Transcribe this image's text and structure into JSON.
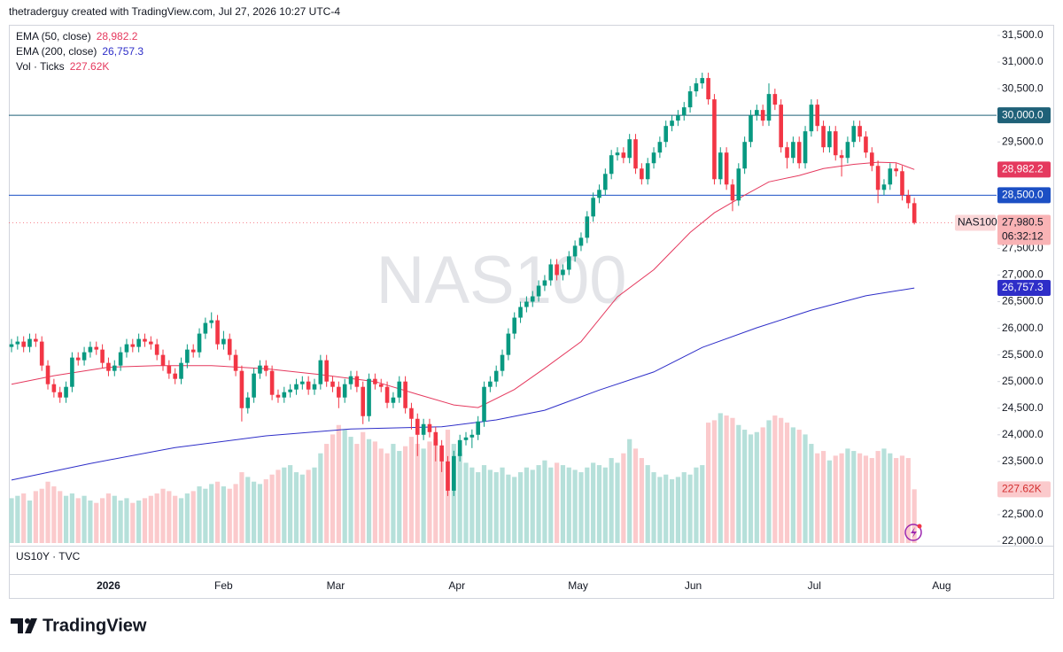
{
  "header": "thetraderguy created with TradingView.com, Jul 27, 2026 10:27 UTC-4",
  "footer_brand": "TradingView",
  "chart_data": {
    "type": "candlestick",
    "watermark": "NAS100",
    "symbol": "NAS100",
    "lower_pane": "US10Y · TVC",
    "up_color": "#089981",
    "down_color": "#f23645",
    "open": [
      25650,
      25700,
      25750,
      25650,
      25800,
      25750,
      25300,
      24950,
      24800,
      24700,
      24900,
      25450,
      25400,
      25550,
      25650,
      25600,
      25350,
      25200,
      25300,
      25550,
      25700,
      25650,
      25800,
      25750,
      25700,
      25500,
      25300,
      25150,
      25050,
      25350,
      25600,
      25550,
      25900,
      26100,
      26150,
      25700,
      25800,
      25500,
      25200,
      24500,
      24700,
      25150,
      25300,
      25200,
      24750,
      24700,
      24800,
      24850,
      24950,
      25000,
      24850,
      24950,
      25400,
      25000,
      24900,
      24700,
      24950,
      25100,
      24900,
      24350,
      25050,
      24950,
      24900,
      24600,
      24700,
      25000,
      24500,
      24300,
      24000,
      24200,
      24050,
      23800,
      23500,
      22950,
      23600,
      23900,
      23950,
      24000,
      24250,
      24900,
      25000,
      25200,
      25500,
      25900,
      26200,
      26400,
      26500,
      26600,
      26800,
      26900,
      27200,
      27000,
      27100,
      27350,
      27550,
      27700,
      28100,
      28450,
      28600,
      28900,
      29250,
      29300,
      29200,
      29550,
      29000,
      28800,
      29100,
      29300,
      29500,
      29800,
      29900,
      30000,
      30150,
      30450,
      30600,
      30700,
      30300,
      28800,
      29300,
      28700,
      28400,
      29000,
      29500,
      30000,
      30100,
      29900,
      30400,
      30200,
      29400,
      29200,
      29500,
      29100,
      29700,
      30200,
      29800,
      29400,
      29700,
      29250,
      29200,
      29500,
      29800,
      29600,
      29300,
      29050,
      28600,
      28700,
      29000,
      28950,
      28500,
      28350
    ],
    "high": [
      25800,
      25850,
      25850,
      25900,
      25900,
      25850,
      25400,
      25050,
      24900,
      25000,
      25550,
      25550,
      25650,
      25750,
      25750,
      25700,
      25450,
      25400,
      25650,
      25800,
      25800,
      25900,
      25900,
      25850,
      25800,
      25600,
      25400,
      25250,
      25450,
      25700,
      25700,
      26000,
      26200,
      26300,
      26250,
      25950,
      25900,
      25600,
      25300,
      24800,
      25250,
      25400,
      25400,
      25300,
      24850,
      24900,
      24950,
      25050,
      25100,
      25100,
      25050,
      25500,
      25500,
      25100,
      25000,
      25050,
      25200,
      25200,
      25000,
      25150,
      25150,
      25050,
      25000,
      24800,
      25100,
      25100,
      24600,
      24400,
      24300,
      24300,
      24150,
      23900,
      23600,
      23700,
      24000,
      24050,
      24100,
      24350,
      25000,
      25100,
      25300,
      25600,
      26000,
      26300,
      26500,
      26600,
      26700,
      26900,
      27000,
      27300,
      27300,
      27200,
      27450,
      27650,
      27800,
      28200,
      28550,
      28700,
      29000,
      29350,
      29400,
      29400,
      29650,
      29650,
      29100,
      29200,
      29400,
      29600,
      29900,
      30000,
      30100,
      30250,
      30550,
      30700,
      30800,
      30800,
      30400,
      29400,
      29400,
      28800,
      29100,
      29600,
      30100,
      30200,
      30200,
      30600,
      30500,
      30300,
      29500,
      29600,
      29600,
      29800,
      30300,
      30300,
      29900,
      29800,
      29800,
      29350,
      29600,
      29900,
      29900,
      29700,
      29400,
      29150,
      28800,
      29100,
      29100,
      29050,
      28600,
      28450
    ],
    "low": [
      25550,
      25600,
      25550,
      25550,
      25650,
      25200,
      24850,
      24700,
      24600,
      24600,
      24800,
      25300,
      25300,
      25450,
      25500,
      25250,
      25100,
      25100,
      25200,
      25450,
      25550,
      25550,
      25650,
      25600,
      25400,
      25200,
      25050,
      24950,
      24950,
      25250,
      25450,
      25450,
      25800,
      26000,
      25600,
      25600,
      25400,
      25100,
      24250,
      24400,
      24600,
      25050,
      25100,
      24650,
      24600,
      24600,
      24700,
      24750,
      24850,
      24750,
      24750,
      24850,
      24900,
      24800,
      24500,
      24600,
      24850,
      24800,
      24200,
      24250,
      24850,
      24800,
      24500,
      24500,
      24600,
      24400,
      24100,
      23600,
      23900,
      23950,
      23500,
      23300,
      22850,
      22850,
      23500,
      23800,
      23750,
      23900,
      24150,
      24800,
      24900,
      25100,
      25400,
      25800,
      26100,
      26300,
      26400,
      26500,
      26700,
      26800,
      26900,
      26900,
      27000,
      27250,
      27450,
      27600,
      28000,
      28350,
      28500,
      28800,
      29150,
      29100,
      29100,
      28900,
      28700,
      28700,
      29000,
      29200,
      29400,
      29700,
      29800,
      29900,
      30050,
      30350,
      30500,
      30200,
      28700,
      28700,
      28600,
      28200,
      28300,
      28900,
      29400,
      29900,
      29800,
      29800,
      30100,
      29300,
      29000,
      29100,
      29000,
      29000,
      29600,
      29700,
      29300,
      29300,
      29150,
      28850,
      29100,
      29400,
      29500,
      29200,
      28950,
      28350,
      28500,
      28600,
      28850,
      28400,
      28250,
      27950
    ],
    "close": [
      25700,
      25750,
      25650,
      25800,
      25750,
      25300,
      24950,
      24800,
      24700,
      24900,
      25450,
      25400,
      25550,
      25650,
      25600,
      25350,
      25200,
      25300,
      25550,
      25700,
      25650,
      25800,
      25750,
      25700,
      25500,
      25300,
      25150,
      25050,
      25350,
      25600,
      25550,
      25900,
      26100,
      26150,
      25700,
      25800,
      25500,
      25200,
      24500,
      24700,
      25150,
      25300,
      25200,
      24750,
      24700,
      24800,
      24850,
      24950,
      25000,
      24850,
      24950,
      25400,
      25000,
      24900,
      24700,
      24950,
      25100,
      24900,
      24350,
      25050,
      24950,
      24900,
      24600,
      24700,
      25000,
      24500,
      24300,
      24000,
      24200,
      24050,
      23800,
      23500,
      22950,
      23600,
      23900,
      23950,
      24000,
      24250,
      24900,
      25000,
      25200,
      25500,
      25900,
      26200,
      26400,
      26500,
      26600,
      26800,
      26900,
      27200,
      27000,
      27100,
      27350,
      27550,
      27700,
      28100,
      28450,
      28600,
      28900,
      29250,
      29300,
      29200,
      29550,
      29000,
      28800,
      29100,
      29300,
      29500,
      29800,
      29900,
      30000,
      30150,
      30450,
      30600,
      30700,
      30300,
      28800,
      29300,
      28700,
      28400,
      29000,
      29500,
      30000,
      30100,
      29900,
      30400,
      30200,
      29400,
      29200,
      29500,
      29100,
      29700,
      30200,
      29800,
      29400,
      29700,
      29250,
      29200,
      29500,
      29800,
      29600,
      29300,
      29050,
      28600,
      28700,
      29000,
      28950,
      28500,
      28350,
      27980.5
    ],
    "close_label": "27,980.5",
    "countdown": "06:32:12",
    "ylim": [
      22000,
      31500
    ],
    "yticks": [
      {
        "value": 22000,
        "label": "22,000.0"
      },
      {
        "value": 22500,
        "label": "22,500.0"
      },
      {
        "value": 23000,
        "label": "23,000.0"
      },
      {
        "value": 23500,
        "label": "23,500.0"
      },
      {
        "value": 24000,
        "label": "24,000.0"
      },
      {
        "value": 24500,
        "label": "24,500.0"
      },
      {
        "value": 25000,
        "label": "25,000.0"
      },
      {
        "value": 25500,
        "label": "25,500.0"
      },
      {
        "value": 26000,
        "label": "26,000.0"
      },
      {
        "value": 26500,
        "label": "26,500.0"
      },
      {
        "value": 27000,
        "label": "27,000.0"
      },
      {
        "value": 27500,
        "label": "27,500.0"
      },
      {
        "value": 28000,
        "label": "28,000.0"
      },
      {
        "value": 28500,
        "label": "28,500.0"
      },
      {
        "value": 29000,
        "label": "29,000.0"
      },
      {
        "value": 29500,
        "label": "29,500.0"
      },
      {
        "value": 30000,
        "label": "30,000.0"
      },
      {
        "value": 30500,
        "label": "30,500.0"
      },
      {
        "value": 31000,
        "label": "31,000.0"
      },
      {
        "value": 31500,
        "label": "31,500.0"
      }
    ],
    "xticks": [
      {
        "value": 16,
        "label": "2026"
      },
      {
        "value": 35,
        "label": "Feb"
      },
      {
        "value": 53.5,
        "label": "Mar"
      },
      {
        "value": 73.5,
        "label": "Apr"
      },
      {
        "value": 93.5,
        "label": "May"
      },
      {
        "value": 112.5,
        "label": "Jun"
      },
      {
        "value": 132.5,
        "label": "Jul"
      },
      {
        "value": 153.5,
        "label": "Aug"
      }
    ],
    "hlines": [
      {
        "value": 30000,
        "label": "30,000.0",
        "color": "#1f6178"
      },
      {
        "value": 28500,
        "label": "28,500.0",
        "color": "#1c4fc4"
      }
    ],
    "series": [
      {
        "name": "EMA (50, close)",
        "color": "#e5395e",
        "last_value_label": "28,982.2",
        "x": [
          0,
          7,
          16,
          24,
          33,
          42,
          51,
          60,
          67,
          73,
          77,
          83,
          88,
          94,
          100,
          106,
          112,
          116,
          121,
          125,
          130,
          134,
          139,
          143,
          146,
          149
        ],
        "values": [
          24950,
          25110,
          25270,
          25300,
          25300,
          25240,
          25130,
          25000,
          24760,
          24560,
          24510,
          24850,
          25250,
          25750,
          26590,
          27100,
          27800,
          28170,
          28500,
          28750,
          28870,
          29000,
          29080,
          29120,
          29110,
          28982.2
        ]
      },
      {
        "name": "EMA (200, close)",
        "color": "#2e2ec8",
        "last_value_label": "26,757.3",
        "x": [
          0,
          13,
          27,
          42,
          56,
          71,
          80,
          88,
          97,
          106,
          114,
          123,
          132,
          141,
          149
        ],
        "values": [
          23150,
          23460,
          23760,
          23980,
          24110,
          24150,
          24280,
          24460,
          24840,
          25180,
          25640,
          26010,
          26340,
          26610,
          26757.3
        ]
      }
    ],
    "volume": {
      "name": "Vol · Ticks",
      "last_value_label": "227.62K",
      "ylim": [
        0,
        2150
      ],
      "up_color": "#b6e0da",
      "down_color": "#fbcacc",
      "values": [
        190,
        200,
        210,
        180,
        220,
        230,
        260,
        240,
        220,
        200,
        210,
        190,
        200,
        180,
        170,
        190,
        210,
        200,
        180,
        190,
        170,
        180,
        190,
        200,
        210,
        230,
        220,
        200,
        190,
        210,
        220,
        240,
        230,
        250,
        260,
        240,
        230,
        250,
        300,
        280,
        260,
        250,
        270,
        290,
        310,
        320,
        330,
        300,
        290,
        310,
        320,
        380,
        420,
        460,
        500,
        480,
        450,
        420,
        470,
        440,
        430,
        400,
        380,
        420,
        390,
        410,
        450,
        420,
        400,
        430,
        440,
        400,
        480,
        420,
        380,
        340,
        320,
        300,
        330,
        310,
        300,
        320,
        290,
        280,
        300,
        320,
        310,
        330,
        350,
        320,
        340,
        330,
        320,
        310,
        300,
        320,
        340,
        330,
        320,
        360,
        340,
        380,
        440,
        400,
        360,
        330,
        300,
        280,
        290,
        270,
        280,
        300,
        290,
        320,
        330,
        510,
        520,
        550,
        540,
        530,
        500,
        480,
        460,
        470,
        490,
        520,
        540,
        530,
        510,
        490,
        480,
        460,
        420,
        380,
        390,
        350,
        370,
        380,
        400,
        390,
        380,
        370,
        360,
        390,
        400,
        380,
        360,
        370,
        360,
        227.62
      ]
    }
  }
}
